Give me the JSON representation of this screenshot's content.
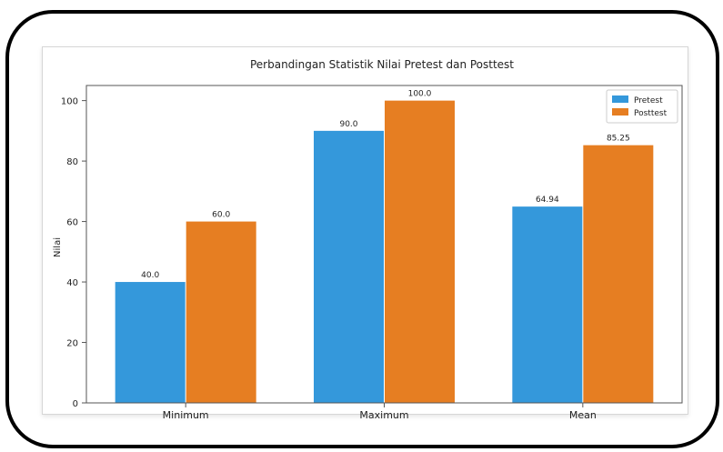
{
  "chart_data": {
    "type": "bar",
    "title": "Perbandingan Statistik Nilai Pretest dan Posttest",
    "xlabel": "",
    "ylabel": "Nilai",
    "categories": [
      "Minimum",
      "Maximum",
      "Mean"
    ],
    "series": [
      {
        "name": "Pretest",
        "values": [
          40.0,
          90.0,
          64.94
        ],
        "labels": [
          "40.0",
          "90.0",
          "64.94"
        ],
        "color": "#3498db"
      },
      {
        "name": "Posttest",
        "values": [
          60.0,
          100.0,
          85.25
        ],
        "labels": [
          "60.0",
          "100.0",
          "85.25"
        ],
        "color": "#e67e22"
      }
    ],
    "ylim": [
      0,
      105
    ],
    "yticks": [
      "0",
      "20",
      "40",
      "60",
      "80",
      "100"
    ],
    "legend_position": "top-right",
    "grid": false
  }
}
